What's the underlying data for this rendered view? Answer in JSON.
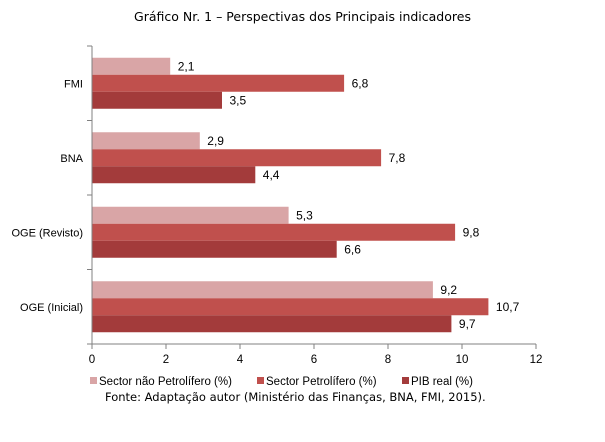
{
  "chart_data": {
    "type": "bar",
    "orientation": "horizontal",
    "title": "Gráfico Nr. 1 – Perspectivas dos Principais indicadores",
    "categories": [
      "FMI",
      "BNA",
      "OGE (Revisto)",
      "OGE (Inicial)"
    ],
    "series": [
      {
        "name": "Sector não Petrolífero (%)",
        "color": "#d9a5a6",
        "values": [
          2.1,
          2.9,
          5.3,
          9.2
        ],
        "labels": [
          "2,1",
          "2,9",
          "5,3",
          "9,2"
        ]
      },
      {
        "name": "Sector Petrolífero (%)",
        "color": "#c0504d",
        "values": [
          6.8,
          7.8,
          9.8,
          10.7
        ],
        "labels": [
          "6,8",
          "7,8",
          "9,8",
          "10,7"
        ]
      },
      {
        "name": "PIB real (%)",
        "color": "#a33b3b",
        "values": [
          3.5,
          4.4,
          6.6,
          9.7
        ],
        "labels": [
          "3,5",
          "4,4",
          "6,6",
          "9,7"
        ]
      }
    ],
    "xlim": [
      0,
      12
    ],
    "xticks": [
      0,
      2,
      4,
      6,
      8,
      10,
      12
    ],
    "grid": false,
    "legend_position": "bottom"
  },
  "source_note": "Fonte: Adaptação autor (Ministério das Finanças, BNA, FMI, 2015)."
}
